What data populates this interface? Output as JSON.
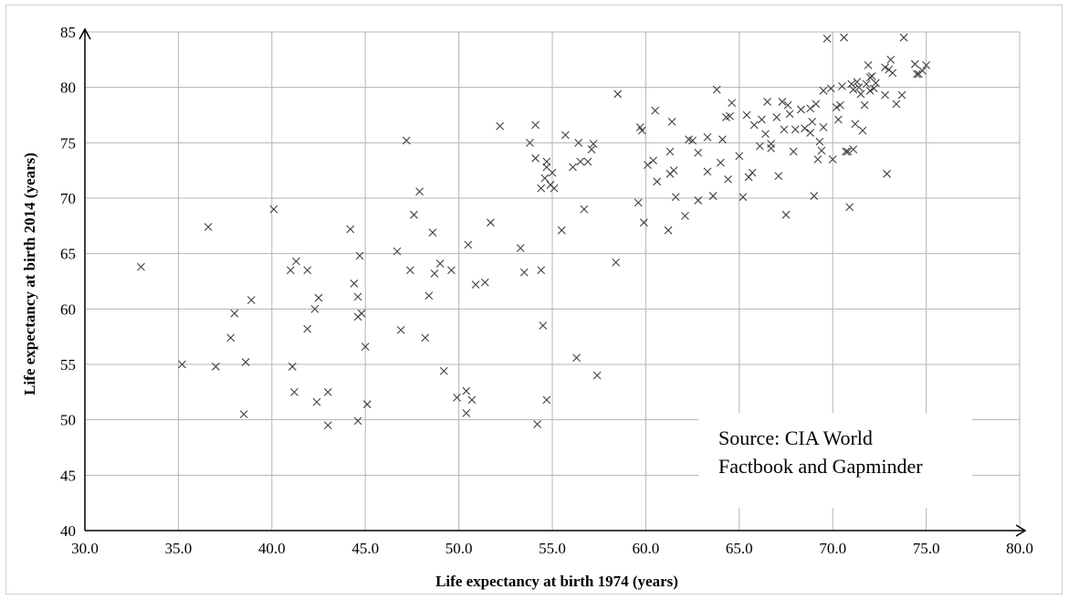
{
  "chart_data": {
    "type": "scatter",
    "xlabel": "Life expectancy at birth 1974 (years)",
    "ylabel": "Life expectancy at birth 2014 (years)",
    "xlim": [
      30,
      80
    ],
    "ylim": [
      40,
      85
    ],
    "x_ticks": [
      "30.0",
      "35.0",
      "40.0",
      "45.0",
      "50.0",
      "55.0",
      "60.0",
      "65.0",
      "70.0",
      "75.0",
      "80.0"
    ],
    "y_ticks": [
      "40",
      "45",
      "50",
      "55",
      "60",
      "65",
      "70",
      "75",
      "80",
      "85"
    ],
    "grid": true,
    "marker": "x",
    "marker_color": "#404040",
    "annotation": [
      "Source: CIA World",
      "Factbook and Gapminder"
    ],
    "points": [
      [
        33.0,
        63.8
      ],
      [
        35.2,
        55.0
      ],
      [
        36.6,
        67.4
      ],
      [
        37.0,
        54.8
      ],
      [
        37.8,
        57.4
      ],
      [
        38.0,
        59.6
      ],
      [
        38.5,
        50.5
      ],
      [
        38.6,
        55.2
      ],
      [
        38.9,
        60.8
      ],
      [
        40.1,
        69.0
      ],
      [
        41.0,
        63.5
      ],
      [
        41.1,
        54.8
      ],
      [
        41.2,
        52.5
      ],
      [
        41.3,
        64.3
      ],
      [
        41.9,
        63.5
      ],
      [
        41.9,
        58.2
      ],
      [
        42.3,
        60.0
      ],
      [
        42.4,
        51.6
      ],
      [
        42.5,
        61.0
      ],
      [
        43.0,
        52.5
      ],
      [
        43.0,
        49.5
      ],
      [
        44.2,
        67.2
      ],
      [
        44.4,
        62.3
      ],
      [
        44.6,
        61.1
      ],
      [
        44.6,
        59.3
      ],
      [
        44.6,
        49.9
      ],
      [
        44.7,
        64.8
      ],
      [
        44.8,
        59.6
      ],
      [
        45.0,
        56.6
      ],
      [
        45.1,
        51.4
      ],
      [
        46.7,
        65.2
      ],
      [
        46.9,
        58.1
      ],
      [
        47.2,
        75.2
      ],
      [
        47.4,
        63.5
      ],
      [
        47.6,
        68.5
      ],
      [
        47.9,
        70.6
      ],
      [
        48.2,
        57.4
      ],
      [
        48.4,
        61.2
      ],
      [
        48.6,
        66.9
      ],
      [
        48.7,
        63.2
      ],
      [
        49.0,
        64.1
      ],
      [
        49.2,
        54.4
      ],
      [
        49.6,
        63.5
      ],
      [
        49.9,
        52.0
      ],
      [
        50.4,
        52.6
      ],
      [
        50.4,
        50.6
      ],
      [
        50.5,
        65.8
      ],
      [
        50.7,
        51.8
      ],
      [
        50.9,
        62.2
      ],
      [
        51.4,
        62.4
      ],
      [
        51.7,
        67.8
      ],
      [
        52.2,
        76.5
      ],
      [
        53.3,
        65.5
      ],
      [
        53.5,
        63.3
      ],
      [
        53.8,
        75.0
      ],
      [
        54.1,
        76.6
      ],
      [
        54.1,
        73.6
      ],
      [
        54.2,
        49.6
      ],
      [
        54.4,
        63.5
      ],
      [
        54.4,
        70.9
      ],
      [
        54.5,
        58.5
      ],
      [
        54.6,
        71.8
      ],
      [
        54.7,
        51.8
      ],
      [
        54.7,
        73.3
      ],
      [
        54.7,
        72.8
      ],
      [
        54.9,
        71.2
      ],
      [
        55.0,
        72.3
      ],
      [
        55.1,
        70.9
      ],
      [
        55.5,
        67.1
      ],
      [
        55.7,
        75.7
      ],
      [
        56.1,
        72.8
      ],
      [
        56.3,
        55.6
      ],
      [
        56.4,
        75.0
      ],
      [
        56.5,
        73.3
      ],
      [
        56.7,
        69.0
      ],
      [
        56.9,
        73.3
      ],
      [
        57.1,
        74.4
      ],
      [
        57.2,
        74.9
      ],
      [
        57.4,
        54.0
      ],
      [
        58.4,
        64.2
      ],
      [
        58.5,
        79.4
      ],
      [
        59.6,
        69.6
      ],
      [
        59.7,
        76.4
      ],
      [
        59.8,
        76.1
      ],
      [
        59.9,
        67.8
      ],
      [
        60.1,
        73.0
      ],
      [
        60.4,
        73.4
      ],
      [
        60.5,
        77.9
      ],
      [
        60.6,
        71.5
      ],
      [
        61.2,
        67.1
      ],
      [
        61.3,
        72.2
      ],
      [
        61.3,
        74.2
      ],
      [
        61.4,
        76.9
      ],
      [
        61.5,
        72.5
      ],
      [
        61.6,
        70.1
      ],
      [
        62.1,
        68.4
      ],
      [
        62.3,
        75.3
      ],
      [
        62.5,
        75.2
      ],
      [
        62.8,
        69.8
      ],
      [
        62.8,
        74.1
      ],
      [
        63.3,
        75.5
      ],
      [
        63.3,
        72.4
      ],
      [
        63.6,
        70.2
      ],
      [
        63.8,
        79.8
      ],
      [
        64.0,
        73.2
      ],
      [
        64.1,
        75.3
      ],
      [
        64.3,
        77.3
      ],
      [
        64.4,
        71.7
      ],
      [
        64.5,
        77.4
      ],
      [
        64.6,
        78.6
      ],
      [
        65.0,
        73.8
      ],
      [
        65.2,
        70.1
      ],
      [
        65.4,
        77.5
      ],
      [
        65.5,
        71.9
      ],
      [
        65.7,
        72.3
      ],
      [
        65.8,
        76.6
      ],
      [
        66.1,
        74.7
      ],
      [
        66.2,
        77.1
      ],
      [
        66.4,
        75.8
      ],
      [
        66.5,
        78.7
      ],
      [
        66.7,
        74.9
      ],
      [
        66.7,
        74.5
      ],
      [
        67.0,
        77.3
      ],
      [
        67.1,
        72.0
      ],
      [
        67.3,
        78.7
      ],
      [
        67.4,
        76.2
      ],
      [
        67.5,
        68.5
      ],
      [
        67.6,
        78.4
      ],
      [
        67.7,
        77.6
      ],
      [
        67.9,
        74.2
      ],
      [
        68.0,
        76.2
      ],
      [
        68.3,
        78.0
      ],
      [
        68.5,
        76.3
      ],
      [
        68.8,
        75.9
      ],
      [
        68.8,
        78.1
      ],
      [
        68.9,
        76.9
      ],
      [
        69.0,
        70.2
      ],
      [
        69.1,
        78.5
      ],
      [
        69.2,
        73.5
      ],
      [
        69.3,
        75.1
      ],
      [
        69.4,
        74.3
      ],
      [
        69.5,
        79.7
      ],
      [
        69.5,
        76.4
      ],
      [
        69.7,
        84.4
      ],
      [
        69.9,
        79.9
      ],
      [
        70.0,
        73.5
      ],
      [
        70.2,
        78.2
      ],
      [
        70.3,
        77.1
      ],
      [
        70.4,
        78.4
      ],
      [
        70.5,
        80.1
      ],
      [
        70.6,
        84.5
      ],
      [
        70.7,
        74.2
      ],
      [
        70.8,
        74.2
      ],
      [
        70.9,
        69.2
      ],
      [
        71.0,
        80.3
      ],
      [
        71.1,
        79.8
      ],
      [
        71.1,
        74.4
      ],
      [
        71.2,
        76.7
      ],
      [
        71.3,
        80.5
      ],
      [
        71.4,
        80.0
      ],
      [
        71.5,
        79.4
      ],
      [
        71.6,
        76.1
      ],
      [
        71.7,
        78.4
      ],
      [
        71.8,
        80.3
      ],
      [
        71.9,
        82.0
      ],
      [
        72.0,
        80.9
      ],
      [
        72.0,
        79.7
      ],
      [
        72.1,
        81.0
      ],
      [
        72.2,
        79.9
      ],
      [
        72.3,
        80.4
      ],
      [
        72.8,
        81.8
      ],
      [
        72.8,
        79.3
      ],
      [
        72.9,
        72.2
      ],
      [
        73.0,
        81.6
      ],
      [
        73.1,
        82.5
      ],
      [
        73.2,
        81.3
      ],
      [
        73.4,
        78.5
      ],
      [
        73.7,
        79.3
      ],
      [
        73.8,
        84.5
      ],
      [
        74.4,
        82.1
      ],
      [
        74.5,
        81.2
      ],
      [
        74.6,
        81.2
      ],
      [
        74.8,
        81.5
      ],
      [
        75.0,
        82.0
      ]
    ]
  }
}
